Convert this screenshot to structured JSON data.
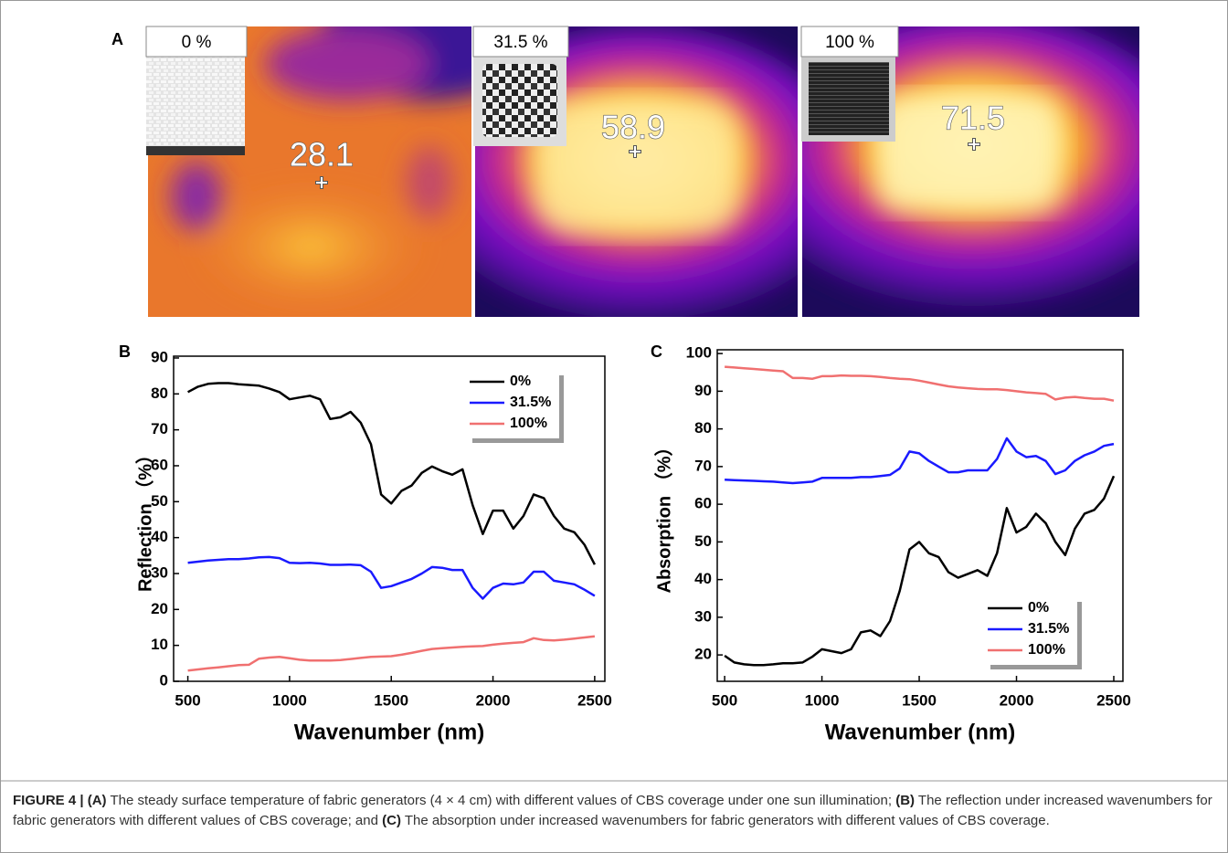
{
  "panel_a": {
    "label": "A",
    "images": [
      {
        "coverage": "0 %",
        "temperature": 28.1
      },
      {
        "coverage": "31.5 %",
        "temperature": 58.9
      },
      {
        "coverage": "100 %",
        "temperature": 71.5
      }
    ]
  },
  "chart_data": [
    {
      "type": "line",
      "panel_label": "B",
      "xlabel": "Wavenumber (nm)",
      "ylabel": "Reflection （%）",
      "xlim": [
        430,
        2550
      ],
      "xticks": [
        500,
        1000,
        1500,
        2000,
        2500
      ],
      "ylim": [
        0,
        90.5
      ],
      "yticks": [
        0,
        10,
        20,
        30,
        40,
        50,
        60,
        70,
        80,
        90
      ],
      "legend_loc": "upper right",
      "x": [
        500,
        550,
        600,
        650,
        700,
        750,
        800,
        850,
        900,
        950,
        1000,
        1050,
        1100,
        1150,
        1200,
        1250,
        1300,
        1350,
        1400,
        1450,
        1500,
        1550,
        1600,
        1650,
        1700,
        1750,
        1800,
        1850,
        1900,
        1950,
        2000,
        2050,
        2100,
        2150,
        2200,
        2250,
        2300,
        2350,
        2400,
        2450,
        2500
      ],
      "series": [
        {
          "name": "0%",
          "color": "#000000",
          "values": [
            80.5,
            82,
            82.8,
            83,
            83,
            82.7,
            82.5,
            82.3,
            81.5,
            80.5,
            78.5,
            79,
            79.5,
            78.5,
            73,
            73.5,
            75,
            72,
            66,
            52,
            49.5,
            53,
            54.5,
            58,
            59.8,
            58.5,
            57.5,
            59,
            49,
            41,
            47.5,
            47.5,
            42.5,
            46,
            52,
            51,
            46,
            42.5,
            41.5,
            38,
            32.5
          ]
        },
        {
          "name": "31.5%",
          "color": "#1a1aff",
          "values": [
            33,
            33.3,
            33.6,
            33.8,
            34,
            34,
            34.2,
            34.5,
            34.6,
            34.3,
            33,
            32.9,
            33,
            32.8,
            32.4,
            32.4,
            32.5,
            32.3,
            30.5,
            26,
            26.5,
            27.5,
            28.5,
            30,
            31.8,
            31.6,
            31,
            31,
            26,
            23,
            26,
            27.2,
            27,
            27.5,
            30.5,
            30.5,
            28,
            27.5,
            27,
            25.5,
            23.8
          ]
        },
        {
          "name": "100%",
          "color": "#f07070",
          "values": [
            3,
            3.3,
            3.6,
            3.9,
            4.2,
            4.5,
            4.6,
            6.3,
            6.6,
            6.8,
            6.4,
            6,
            5.8,
            5.8,
            5.8,
            5.9,
            6.2,
            6.5,
            6.8,
            6.9,
            7,
            7.4,
            7.9,
            8.5,
            9,
            9.2,
            9.4,
            9.6,
            9.7,
            9.8,
            10.2,
            10.5,
            10.7,
            10.9,
            12,
            11.5,
            11.4,
            11.6,
            11.9,
            12.2,
            12.5
          ]
        }
      ]
    },
    {
      "type": "line",
      "panel_label": "C",
      "xlabel": "Wavenumber (nm)",
      "ylabel": "Absorption （%）",
      "xlim": [
        462,
        2547
      ],
      "xticks": [
        500,
        1000,
        1500,
        2000,
        2500
      ],
      "ylim": [
        13,
        101
      ],
      "yticks": [
        20,
        30,
        40,
        50,
        60,
        70,
        80,
        90,
        100
      ],
      "legend_loc": "lower right",
      "x": [
        500,
        550,
        600,
        650,
        700,
        750,
        800,
        850,
        900,
        950,
        1000,
        1050,
        1100,
        1150,
        1200,
        1250,
        1300,
        1350,
        1400,
        1450,
        1500,
        1550,
        1600,
        1650,
        1700,
        1750,
        1800,
        1850,
        1900,
        1950,
        2000,
        2050,
        2100,
        2150,
        2200,
        2250,
        2300,
        2350,
        2400,
        2450,
        2500
      ],
      "series": [
        {
          "name": "0%",
          "color": "#000000",
          "values": [
            19.8,
            18,
            17.5,
            17.3,
            17.3,
            17.5,
            17.8,
            17.8,
            18,
            19.5,
            21.5,
            21,
            20.5,
            21.5,
            26,
            26.5,
            25,
            29,
            37,
            48,
            50,
            47,
            46,
            42,
            40.5,
            41.5,
            42.5,
            41,
            47,
            59,
            52.5,
            54,
            57.5,
            55,
            50,
            46.5,
            53.5,
            57.5,
            58.5,
            61.5,
            67.5
          ]
        },
        {
          "name": "31.5%",
          "color": "#1a1aff",
          "values": [
            66.5,
            66.4,
            66.3,
            66.2,
            66.1,
            66,
            65.8,
            65.6,
            65.8,
            66,
            67,
            67,
            67,
            67,
            67.2,
            67.2,
            67.5,
            67.8,
            69.5,
            74,
            73.5,
            71.5,
            70,
            68.5,
            68.5,
            69,
            69,
            69,
            72,
            77.5,
            74,
            72.5,
            72.8,
            71.5,
            68,
            69,
            71.5,
            73,
            74,
            75.5,
            76
          ]
        },
        {
          "name": "100%",
          "color": "#f07070",
          "values": [
            96.5,
            96.3,
            96.1,
            95.9,
            95.7,
            95.5,
            95.3,
            93.5,
            93.5,
            93.3,
            94,
            94,
            94.2,
            94.1,
            94.1,
            94,
            93.8,
            93.5,
            93.3,
            93.2,
            92.8,
            92.3,
            91.8,
            91.3,
            91,
            90.8,
            90.6,
            90.5,
            90.5,
            90.3,
            90,
            89.7,
            89.5,
            89.3,
            87.8,
            88.3,
            88.5,
            88.2,
            88,
            88,
            87.5
          ]
        }
      ]
    }
  ],
  "caption": {
    "runs": [
      {
        "text": "FIGURE 4 | ",
        "bold": true
      },
      {
        "text": "(A)",
        "bold": true
      },
      {
        "text": " The steady surface temperature of fabric generators (4 × 4 cm) with different values of CBS coverage under one sun illumination; ",
        "bold": false
      },
      {
        "text": "(B)",
        "bold": true
      },
      {
        "text": " The reflection under increased wavenumbers for fabric generators with different values of CBS coverage; and ",
        "bold": false
      },
      {
        "text": "(C)",
        "bold": true
      },
      {
        "text": " The absorption under increased wavenumbers for fabric generators with different values of CBS coverage.",
        "bold": false
      }
    ]
  }
}
